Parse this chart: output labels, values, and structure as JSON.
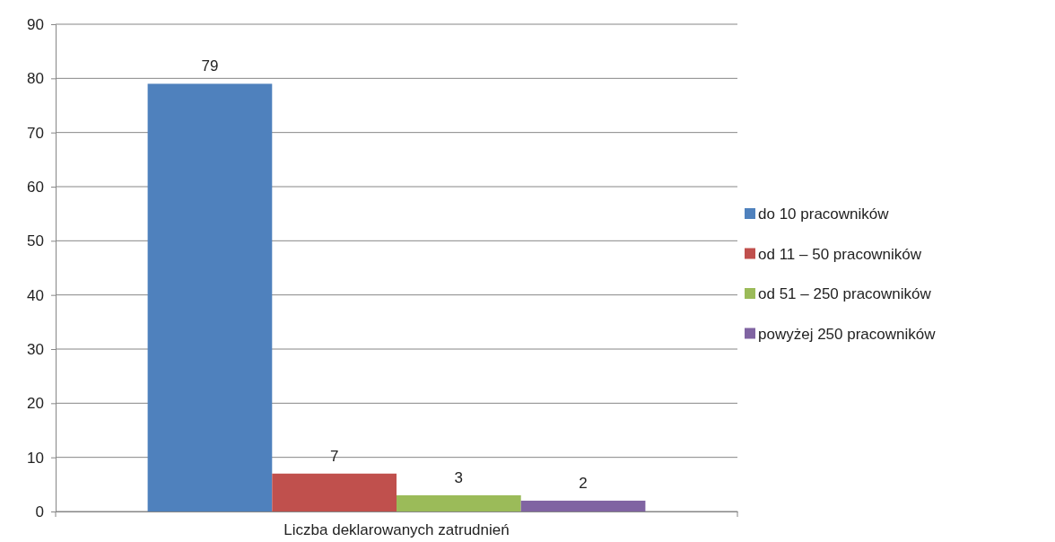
{
  "chart_data": {
    "type": "bar",
    "categories": [
      "Liczba deklarowanych zatrudnień"
    ],
    "series": [
      {
        "name": "do 10 pracowników",
        "color": "#4f81bd",
        "values": [
          79
        ]
      },
      {
        "name": "od 11 – 50 pracowników",
        "color": "#c0504d",
        "values": [
          7
        ]
      },
      {
        "name": "od 51 – 250 pracowników",
        "color": "#9bbb59",
        "values": [
          3
        ]
      },
      {
        "name": "powyżej 250 pracowników",
        "color": "#8064a2",
        "values": [
          2
        ]
      }
    ],
    "ylim": [
      0,
      90
    ],
    "yticks": [
      0,
      10,
      20,
      30,
      40,
      50,
      60,
      70,
      80,
      90
    ],
    "grid": "y",
    "legend": "right",
    "data_labels": true
  }
}
